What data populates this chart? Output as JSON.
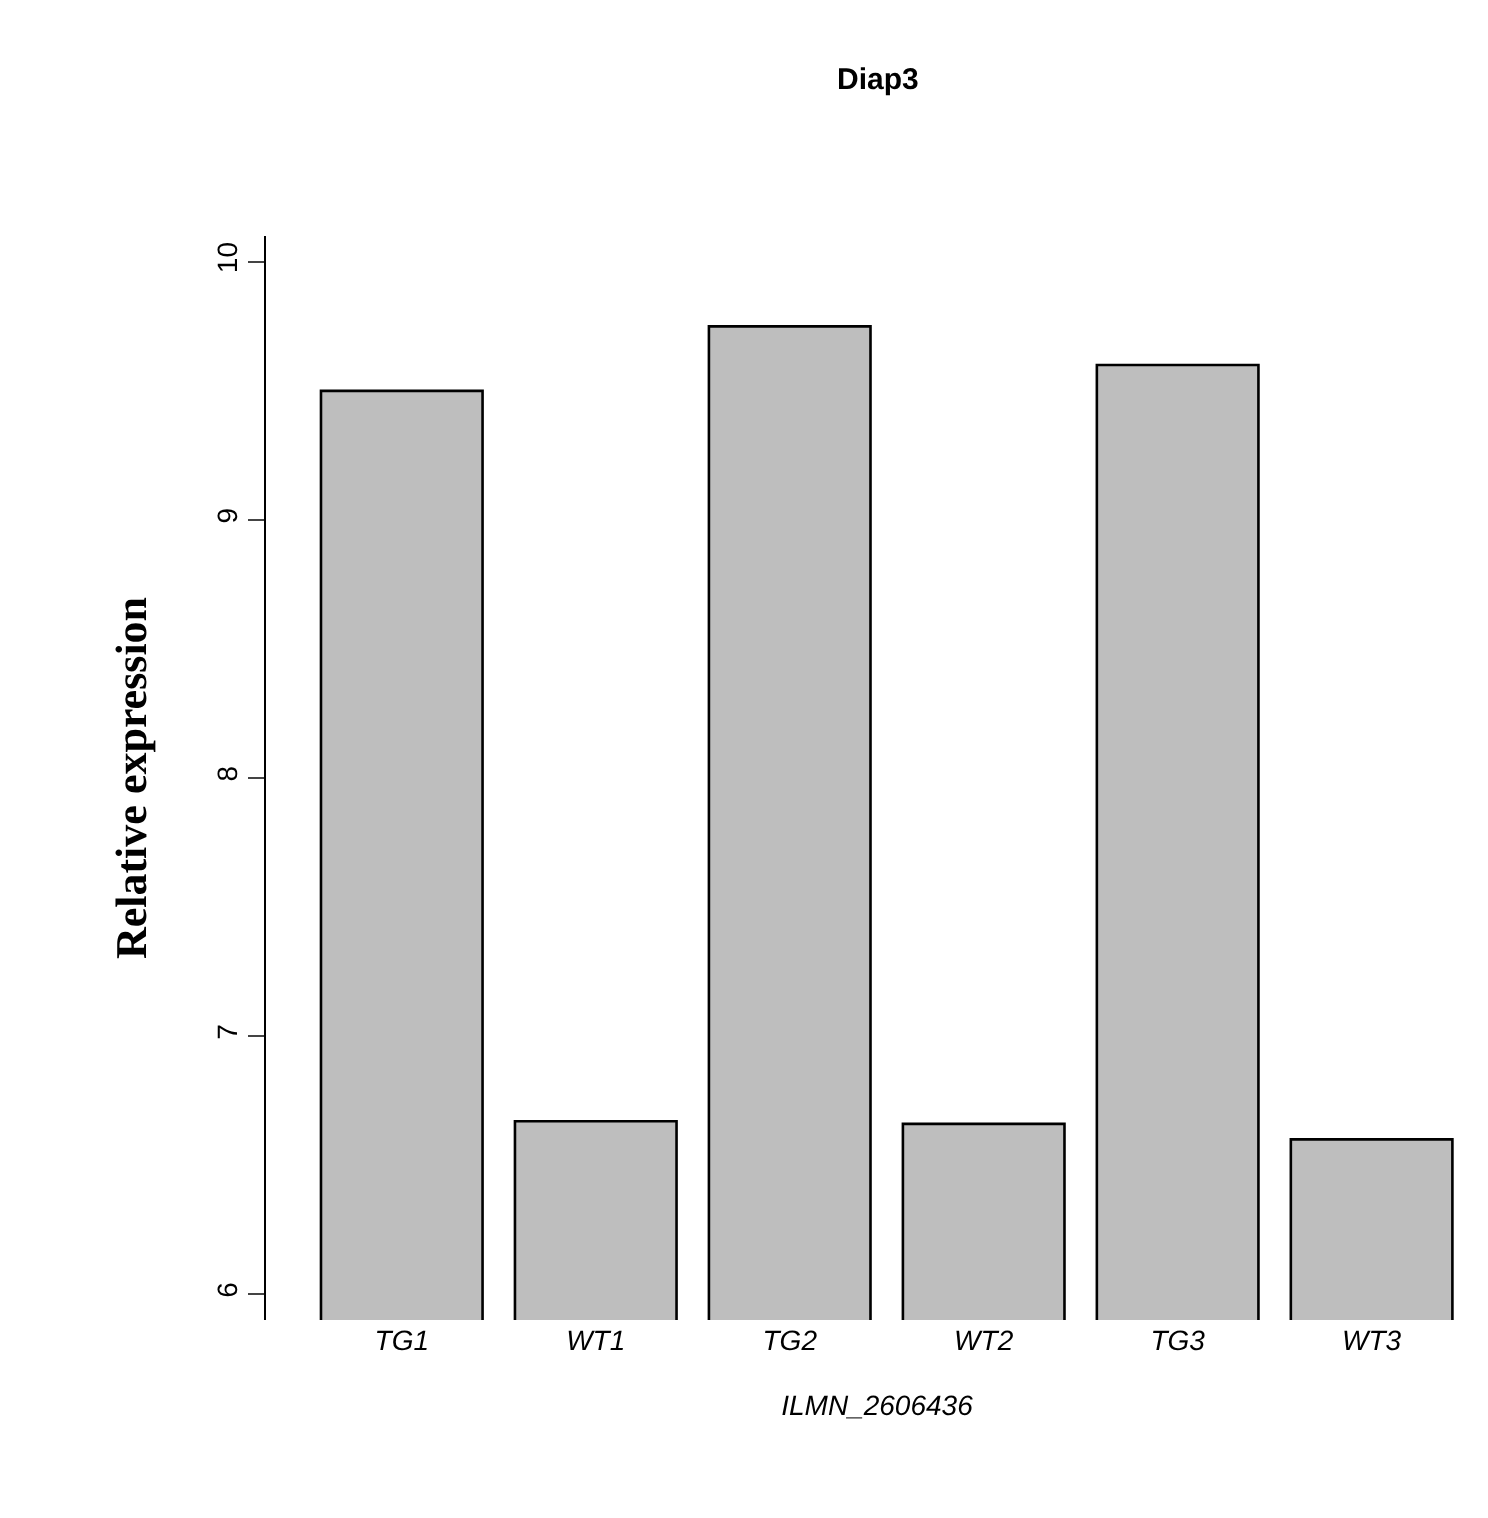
{
  "chart_data": {
    "type": "bar",
    "title": "Diap3",
    "xlabel": "ILMN_2606436",
    "ylabel": "Relative expression",
    "categories": [
      "TG1",
      "WT1",
      "TG2",
      "WT2",
      "TG3",
      "WT3"
    ],
    "values": [
      9.5,
      6.67,
      9.75,
      6.66,
      9.6,
      6.6
    ],
    "color": "#bebebe",
    "ylim": [
      5.9,
      10.1
    ],
    "yticks": [
      6,
      7,
      8,
      9,
      10
    ]
  }
}
